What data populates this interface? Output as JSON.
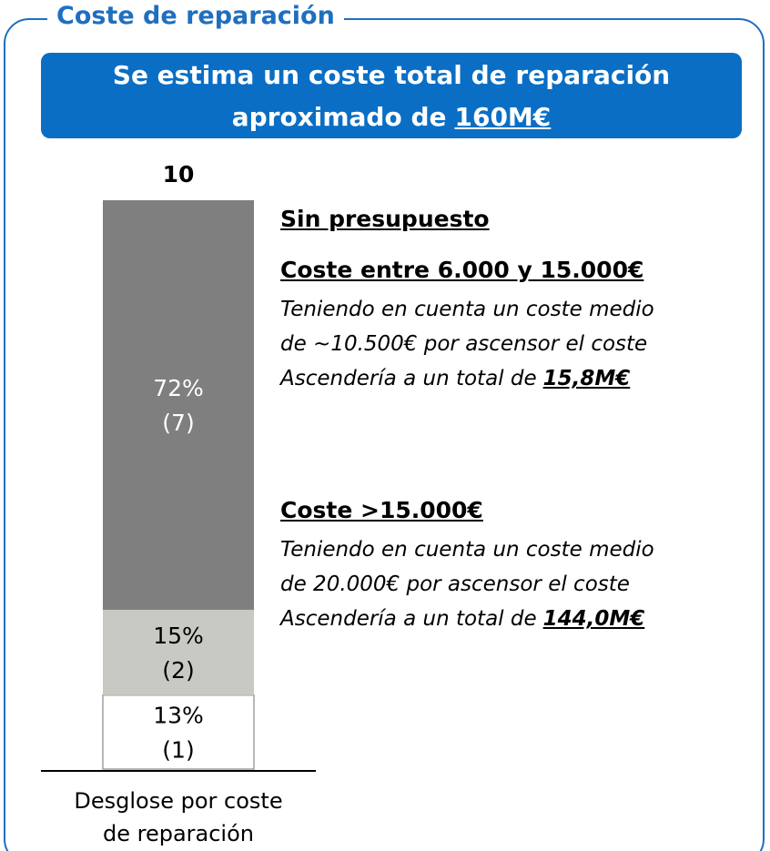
{
  "panel_title": "Coste de reparación",
  "banner": {
    "lines": [
      "Se estima un coste total de reparación",
      "aproximado de"
    ],
    "highlight": "160M€"
  },
  "chart_data": {
    "type": "stacked_bar",
    "categories": [
      "Desglose por coste de reparación"
    ],
    "total": 10,
    "series": [
      {
        "name": null,
        "color": "#ffffff",
        "values": [
          13
        ],
        "value_labels": [
          "13%"
        ],
        "counts": [
          1
        ],
        "count_labels": [
          "(1)"
        ],
        "label_color": "#000000"
      },
      {
        "name": null,
        "color": "#c9c9c4",
        "values": [
          15
        ],
        "value_labels": [
          "15%"
        ],
        "counts": [
          2
        ],
        "count_labels": [
          "(2)"
        ],
        "label_color": "#000000"
      },
      {
        "name": null,
        "color": "#7f7f7f",
        "values": [
          72
        ],
        "value_labels": [
          "72%"
        ],
        "counts": [
          7
        ],
        "count_labels": [
          "(7)"
        ],
        "label_color": "#ffffff"
      }
    ],
    "ylim": [
      0,
      100
    ],
    "annotations": [
      {
        "heading": "Sin presupuesto"
      },
      {
        "heading": "Coste entre 6.000 y 15.000€",
        "lines": [
          "Teniendo en cuenta un coste medio",
          "de ~10.500€ por ascensor el coste",
          "Ascendería a un total de"
        ],
        "highlight": "15,8M€"
      },
      {
        "heading": "Coste >15.000€",
        "lines": [
          "Teniendo en cuenta un coste medio",
          "de 20.000€ por ascensor el coste",
          "Ascendería a un total de"
        ],
        "highlight": "144,0M€"
      }
    ]
  }
}
